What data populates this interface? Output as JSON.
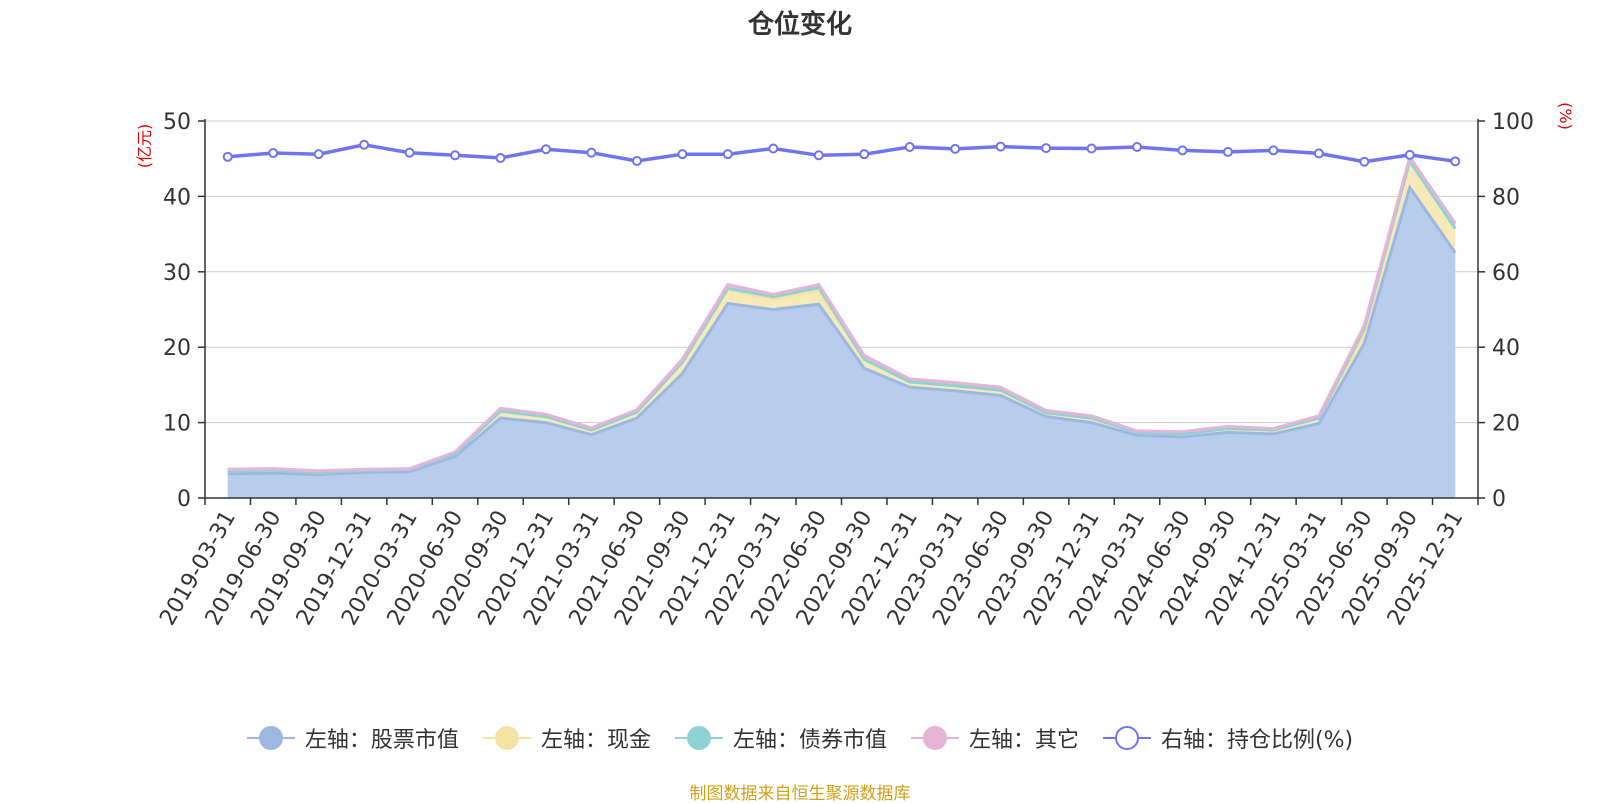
{
  "chart_data": {
    "type": "area",
    "title": "仓位变化",
    "source_note": "制图数据来自恒生聚源数据库",
    "left_axis": {
      "unit": "(亿元)",
      "min": 0,
      "max": 50,
      "ticks": [
        "0",
        "10",
        "20",
        "30",
        "40",
        "50"
      ]
    },
    "right_axis": {
      "unit": "(%)",
      "min": 0,
      "max": 100,
      "ticks": [
        "0",
        "20",
        "40",
        "60",
        "80",
        "100"
      ]
    },
    "categories": [
      "2019-03-31",
      "2019-06-30",
      "2019-09-30",
      "2019-12-31",
      "2020-03-31",
      "2020-06-30",
      "2020-09-30",
      "2020-12-31",
      "2021-03-31",
      "2021-06-30",
      "2021-09-30",
      "2021-12-31",
      "2022-03-31",
      "2022-06-30",
      "2022-09-30",
      "2022-12-31",
      "2023-03-31",
      "2023-06-30",
      "2023-09-30",
      "2023-12-31",
      "2024-03-31",
      "2024-06-30",
      "2024-09-30",
      "2024-12-31",
      "2025-03-31",
      "2025-06-30",
      "2025-09-30",
      "2025-12-31"
    ],
    "series": [
      {
        "name": "左轴：股票市值",
        "axis": "left",
        "color": "#9cb8e2",
        "fill": "#b8cceb",
        "values": [
          3.2,
          3.3,
          3.1,
          3.4,
          3.5,
          5.5,
          10.6,
          10.0,
          8.4,
          10.6,
          16.5,
          25.8,
          25.0,
          25.7,
          17.2,
          14.7,
          14.2,
          13.6,
          10.8,
          10.0,
          8.3,
          8.1,
          8.7,
          8.5,
          9.9,
          20.5,
          41.2,
          32.5
        ]
      },
      {
        "name": "左轴：现金",
        "axis": "left",
        "color": "#f5e3a3",
        "fill": "#f8eab8",
        "values": [
          0.4,
          0.4,
          0.3,
          0.3,
          0.3,
          0.4,
          0.9,
          0.8,
          0.6,
          0.8,
          1.5,
          1.8,
          1.4,
          1.8,
          1.2,
          0.7,
          0.7,
          0.7,
          0.5,
          0.6,
          0.4,
          0.4,
          0.5,
          0.5,
          0.7,
          1.2,
          3.5,
          3.2
        ]
      },
      {
        "name": "左轴：债券市值",
        "axis": "left",
        "color": "#8fd2d3",
        "fill": "#a9dcdd",
        "values": [
          0,
          0,
          0,
          0,
          0,
          0,
          0,
          0,
          0,
          0,
          0,
          0.2,
          0.3,
          0.4,
          0,
          0,
          0,
          0,
          0,
          0,
          0,
          0,
          0,
          0,
          0,
          0.8,
          0,
          0
        ]
      },
      {
        "name": "左轴：其它",
        "axis": "left",
        "color": "#e6b3d9",
        "fill": "#eec6e4",
        "values": [
          0.2,
          0.2,
          0.2,
          0.1,
          0.1,
          0.2,
          0.4,
          0.3,
          0.3,
          0.3,
          0.4,
          0.5,
          0.3,
          0.4,
          0.5,
          0.4,
          0.4,
          0.4,
          0.3,
          0.3,
          0.2,
          0.3,
          0.3,
          0.2,
          0.3,
          0.4,
          0.5,
          0.7
        ]
      },
      {
        "name": "右轴：持仓比例(%)",
        "axis": "right",
        "color": "#6f74f0",
        "values": [
          90.5,
          91.5,
          91.2,
          93.7,
          91.6,
          90.9,
          90.2,
          92.5,
          91.6,
          89.4,
          91.2,
          91.2,
          92.7,
          90.9,
          91.2,
          93.1,
          92.6,
          93.2,
          92.8,
          92.7,
          93.1,
          92.2,
          91.8,
          92.2,
          91.4,
          89.2,
          91.0,
          89.3
        ]
      }
    ]
  }
}
